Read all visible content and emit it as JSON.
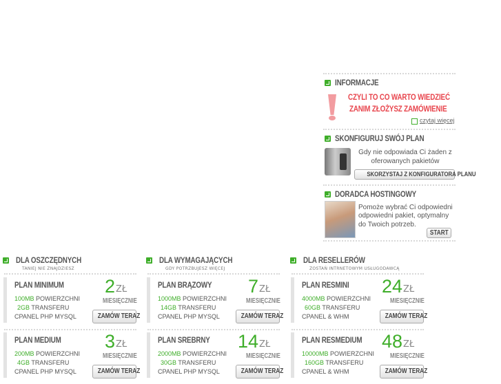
{
  "sidebar": {
    "info": {
      "title": "INFORMACJE",
      "line1": "CZYLI TO CO WARTO WIEDZIEĆ",
      "line2": "ZANIM ZŁOŻYSZ ZAMÓWIENIE",
      "link": "czytaj więcej"
    },
    "config": {
      "title": "SKONFIGURUJ SWÓJ PLAN",
      "text1": "Gdy nie odpowiada Ci żaden z",
      "text2": "oferowanych pakietów",
      "button": "SKORZYSTAJ Z KONFIGURATORA PLANU"
    },
    "advisor": {
      "title": "DORADCA HOSTINGOWY",
      "text1": "Pomoże wybrać Ci odpowiedni",
      "text2": "odpowiedni pakiet, optymalny",
      "text3": "do Twoich potrzeb.",
      "button": "START"
    }
  },
  "columns": [
    {
      "title": "DLA OSZCZĘDNYCH",
      "subtitle": "TANIEJ NIE ZNAJDZIESZ",
      "plans": [
        {
          "name": "PLAN MINIMUM",
          "space": "100MB",
          "space_label": "POWIERZCHNI",
          "transfer": "2GB",
          "transfer_label": "TRANSFERU",
          "extra": "CPANEL PHP MYSQL",
          "price": "2",
          "currency": "ZŁ",
          "period": "MIESIĘCZNIE",
          "button": "ZAMÓW TERAZ"
        },
        {
          "name": "PLAN MEDIUM",
          "space": "200MB",
          "space_label": "POWIERZCHNI",
          "transfer": "4GB",
          "transfer_label": "TRANSFERU",
          "extra": "CPANEL PHP MYSQL",
          "price": "3",
          "currency": "ZŁ",
          "period": "MIESIĘCZNIE",
          "button": "ZAMÓW TERAZ"
        }
      ]
    },
    {
      "title": "DLA WYMAGAJĄCYCH",
      "subtitle": "GDY POTRZBUJESZ WIĘCEJ",
      "plans": [
        {
          "name": "PLAN BRĄZOWY",
          "space": "1000MB",
          "space_label": "POWIERZCHNI",
          "transfer": "14GB",
          "transfer_label": "TRANSFERU",
          "extra": "CPANEL PHP MYSQL",
          "price": "7",
          "currency": "ZŁ",
          "period": "MIESIĘCZNIE",
          "button": "ZAMÓW TERAZ"
        },
        {
          "name": "PLAN SREBRNY",
          "space": "2000MB",
          "space_label": "POWIERZCHNI",
          "transfer": "30GB",
          "transfer_label": "TRANSFERU",
          "extra": "CPANEL PHP MYSQL",
          "price": "14",
          "currency": "ZŁ",
          "period": "MIESIĘCZNIE",
          "button": "ZAMÓW TERAZ"
        }
      ]
    },
    {
      "title": "DLA RESELLERÓW",
      "subtitle": "ZOSTAŃ INTRNETOWYM USŁUGODAWCĄ",
      "plans": [
        {
          "name": "PLAN RESMINI",
          "space": "4000MB",
          "space_label": "POWIERZCHNI",
          "transfer": "60GB",
          "transfer_label": "TRANSFERU",
          "extra": "CPANEL & WHM",
          "price": "24",
          "currency": "ZŁ",
          "period": "MIESIĘCZNIE",
          "button": "ZAMÓW TERAZ"
        },
        {
          "name": "PLAN RESMEDIUM",
          "space": "10000MB",
          "space_label": "POWIERZCHNI",
          "transfer": "160GB",
          "transfer_label": "TRANSFERU",
          "extra": "CPANEL & WHM",
          "price": "48",
          "currency": "ZŁ",
          "period": "MIESIĘCZNIE",
          "button": "ZAMÓW TERAZ"
        }
      ]
    }
  ],
  "colors": {
    "accent": "#3fae2a",
    "alert": "#e8454d"
  }
}
